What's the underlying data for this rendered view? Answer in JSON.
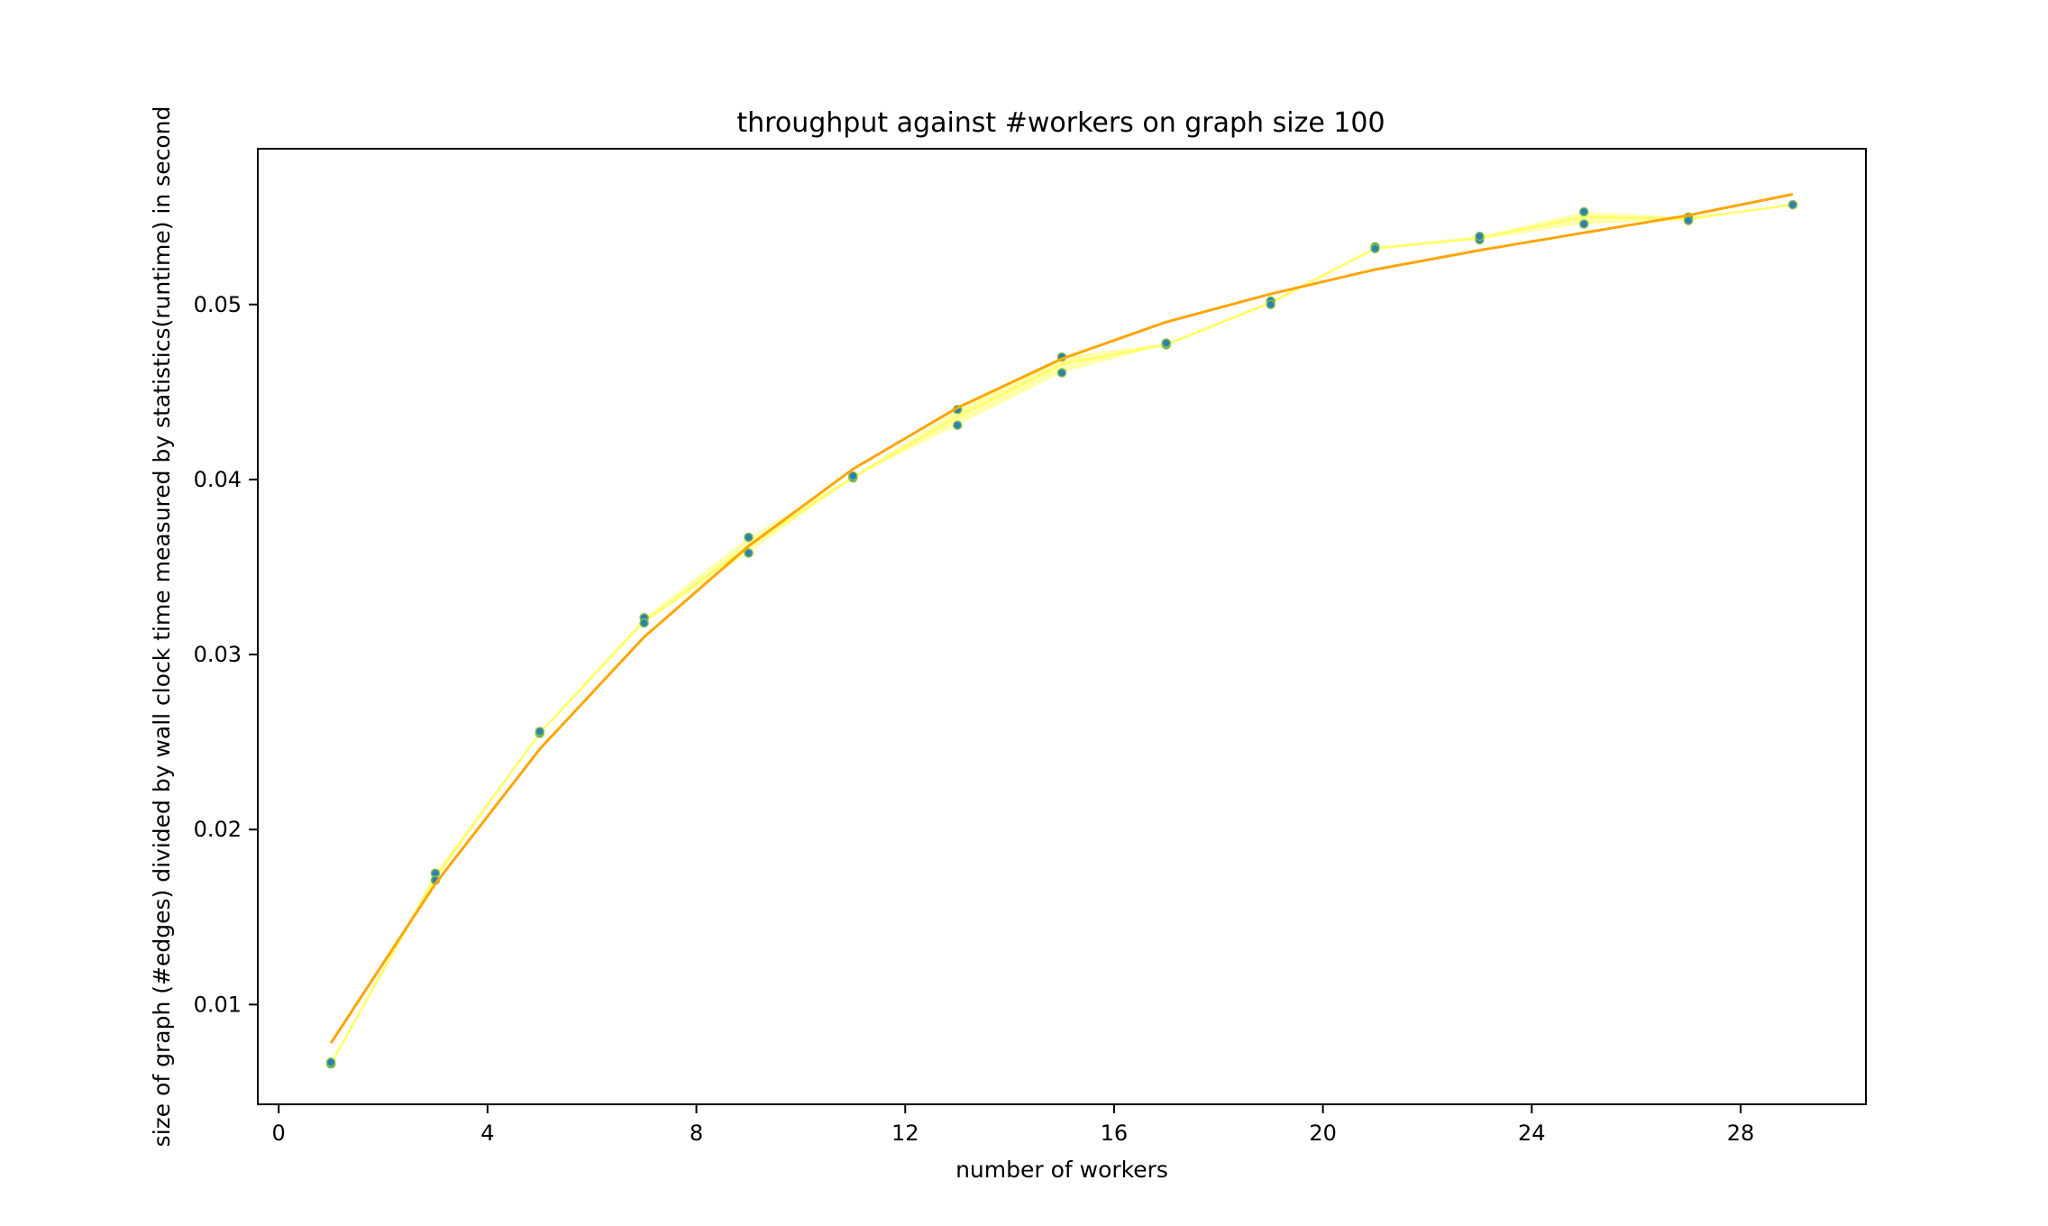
{
  "chart_data": {
    "type": "scatter",
    "title": "throughput against #workers on graph size 100",
    "xlabel": "number of workers",
    "ylabel": "size of graph (#edges) divided by wall clock time measured by statistics(runtime) in second",
    "xlim": [
      -0.4,
      30.4
    ],
    "ylim": [
      0.0043,
      0.0589
    ],
    "xticks": [
      0,
      4,
      8,
      12,
      16,
      20,
      24,
      28
    ],
    "xtick_labels": [
      "0",
      "4",
      "8",
      "12",
      "16",
      "20",
      "24",
      "28"
    ],
    "yticks": [
      0.01,
      0.02,
      0.03,
      0.04,
      0.05
    ],
    "ytick_labels": [
      "0.01",
      "0.02",
      "0.03",
      "0.04",
      "0.05"
    ],
    "grid": false,
    "scatter_points": {
      "x": [
        1,
        1,
        3,
        3,
        5,
        5,
        7,
        7,
        9,
        9,
        11,
        11,
        13,
        13,
        15,
        15,
        17,
        17,
        19,
        19,
        21,
        21,
        23,
        23,
        25,
        25,
        27,
        27,
        29,
        29
      ],
      "y": [
        0.0066,
        0.0067,
        0.0175,
        0.0171,
        0.0255,
        0.0256,
        0.0321,
        0.0318,
        0.0367,
        0.0358,
        0.0401,
        0.0402,
        0.044,
        0.0431,
        0.047,
        0.0461,
        0.0477,
        0.0478,
        0.0502,
        0.05,
        0.0533,
        0.0532,
        0.0537,
        0.0539,
        0.0553,
        0.0546,
        0.055,
        0.0548,
        0.0557,
        0.0557
      ]
    },
    "band": {
      "x": [
        1,
        3,
        5,
        7,
        9,
        11,
        13,
        15,
        17,
        19,
        21,
        23,
        25,
        27,
        29
      ],
      "upper": [
        0.0067,
        0.0175,
        0.0256,
        0.0321,
        0.0367,
        0.0402,
        0.044,
        0.047,
        0.0478,
        0.0502,
        0.0533,
        0.0539,
        0.0553,
        0.055,
        0.0557
      ],
      "lower": [
        0.0066,
        0.0171,
        0.0255,
        0.0318,
        0.0358,
        0.0401,
        0.0431,
        0.0461,
        0.0477,
        0.05,
        0.0532,
        0.0537,
        0.0546,
        0.0548,
        0.0557
      ],
      "mean": [
        0.0066,
        0.0173,
        0.0255,
        0.0319,
        0.0362,
        0.0401,
        0.0436,
        0.0466,
        0.0477,
        0.0501,
        0.0532,
        0.0538,
        0.055,
        0.0549,
        0.0557
      ]
    },
    "fit_line": {
      "x": [
        1,
        3,
        5,
        7,
        9,
        11,
        13,
        15,
        17,
        19,
        21,
        23,
        25,
        27,
        29
      ],
      "y": [
        0.0078,
        0.0169,
        0.0246,
        0.031,
        0.0362,
        0.0406,
        0.0441,
        0.0469,
        0.049,
        0.0506,
        0.052,
        0.0531,
        0.0541,
        0.0551,
        0.0563
      ]
    },
    "colors": {
      "points": "#2f7fb0",
      "points_edge": "#7fbf4d",
      "band_fill": "#ffff9e",
      "band_line": "#ffff66",
      "fit_line": "#ffa500"
    }
  }
}
